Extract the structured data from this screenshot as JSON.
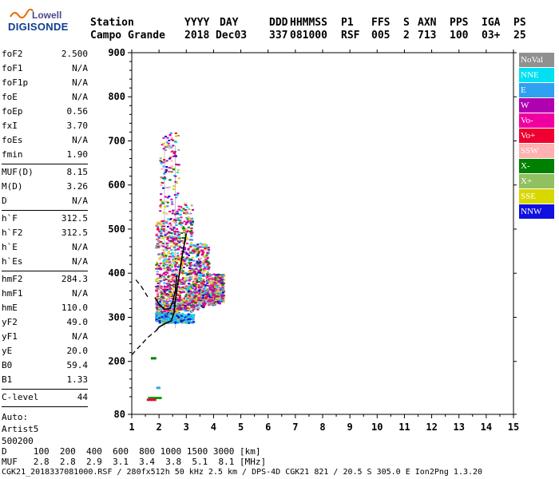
{
  "logo": {
    "line1": "Lowell",
    "line2": "DIGISONDE"
  },
  "header": {
    "labels": [
      "Station",
      "YYYY",
      "DAY",
      "DDD",
      "HHMMSS",
      "P1",
      "FFS",
      "S",
      "AXN",
      "PPS",
      "IGA",
      "PS"
    ],
    "values": [
      "Campo Grande",
      "2018",
      "Dec03",
      "337",
      "081000",
      "RSF",
      "005",
      "2",
      "713",
      "100",
      "03+",
      "25"
    ]
  },
  "params": {
    "g1": [
      {
        "label": "foF2",
        "value": "2.500"
      },
      {
        "label": "foF1",
        "value": "N/A"
      },
      {
        "label": "foF1p",
        "value": "N/A"
      },
      {
        "label": "foE",
        "value": "N/A"
      },
      {
        "label": "foEp",
        "value": "0.56"
      },
      {
        "label": "fxI",
        "value": "3.70"
      },
      {
        "label": "foEs",
        "value": "N/A"
      },
      {
        "label": "fmin",
        "value": "1.90"
      }
    ],
    "g2": [
      {
        "label": "MUF(D)",
        "value": "8.15"
      },
      {
        "label": "M(D)",
        "value": "3.26"
      },
      {
        "label": "D",
        "value": "N/A"
      }
    ],
    "g3": [
      {
        "label": "h`F",
        "value": "312.5"
      },
      {
        "label": "h`F2",
        "value": "312.5"
      },
      {
        "label": "h`E",
        "value": "N/A"
      },
      {
        "label": "h`Es",
        "value": "N/A"
      }
    ],
    "g4": [
      {
        "label": "hmF2",
        "value": "284.3"
      },
      {
        "label": "hmF1",
        "value": "N/A"
      },
      {
        "label": "hmE",
        "value": "110.0"
      },
      {
        "label": "yF2",
        "value": "49.0"
      },
      {
        "label": "yF1",
        "value": "N/A"
      },
      {
        "label": "yE",
        "value": "20.0"
      },
      {
        "label": "B0",
        "value": "59.4"
      },
      {
        "label": "B1",
        "value": "1.33"
      }
    ],
    "g5": [
      {
        "label": "C-level",
        "value": "44"
      }
    ],
    "auto": [
      "Auto:",
      "Artist5",
      "500200"
    ]
  },
  "legend": [
    {
      "label": "NoVal",
      "color": "#909090"
    },
    {
      "label": "NNE",
      "color": "#00e0f0"
    },
    {
      "label": "E",
      "color": "#30a0f0"
    },
    {
      "label": "W",
      "color": "#b000b0"
    },
    {
      "label": "Vo-",
      "color": "#f000a0"
    },
    {
      "label": "Vo+",
      "color": "#f00030"
    },
    {
      "label": "SSW",
      "color": "#ffb0b0"
    },
    {
      "label": "X-",
      "color": "#008000"
    },
    {
      "label": "X+",
      "color": "#90c060"
    },
    {
      "label": "SSE",
      "color": "#d8d800"
    },
    {
      "label": "NNW",
      "color": "#1010e0"
    }
  ],
  "footer": {
    "line1": "D     100  200  400  600  800 1000 1500 3000 [km]",
    "line2": "MUF   2.8  2.8  2.9  3.1  3.4  3.8  5.1  8.1 [MHz]",
    "line3": "CGK21_2018337081000.RSF / 280fx512h 50 kHz 2.5 km / DPS-4D CGK21 821 / 20.5 S 305.0 E Ion2Png 1.3.20"
  },
  "chart_data": {
    "type": "scatter",
    "xlim": [
      1,
      15
    ],
    "ylim": [
      80,
      900
    ],
    "xticks": [
      "1",
      "2",
      "3",
      "4",
      "5",
      "6",
      "7",
      "8",
      "9",
      "10",
      "11",
      "12",
      "13",
      "14",
      "15"
    ],
    "yticks": [
      "80",
      "200",
      "300",
      "400",
      "500",
      "600",
      "700",
      "800",
      "900"
    ],
    "grid": false,
    "legend_position": "right",
    "es_traces": [
      {
        "x": [
          1.6,
          2.1
        ],
        "y": [
          117,
          117
        ],
        "color": "#00a000"
      },
      {
        "x": [
          1.55,
          1.9
        ],
        "y": [
          113,
          113
        ],
        "color": "#f00030"
      },
      {
        "x": [
          1.9,
          2.05
        ],
        "y": [
          140,
          140
        ],
        "color": "#30a0f0"
      },
      {
        "x": [
          1.7,
          1.9
        ],
        "y": [
          207,
          207
        ],
        "color": "#008000"
      }
    ],
    "profile_dashed": {
      "x": [
        1.0,
        1.3,
        1.6,
        1.8,
        1.9
      ],
      "y": [
        215,
        235,
        255,
        265,
        270
      ]
    },
    "profile_upper_dashed": {
      "x": [
        1.15,
        1.35,
        1.5,
        1.6
      ],
      "y": [
        385,
        370,
        355,
        345
      ]
    },
    "profile_solid": {
      "x": [
        1.9,
        2.0,
        2.2,
        2.45,
        2.55,
        2.6,
        2.7,
        2.85,
        3.0
      ],
      "y": [
        270,
        278,
        285,
        292,
        310,
        340,
        380,
        440,
        490
      ]
    },
    "trace_solid_inner": {
      "x": [
        1.85,
        2.0,
        2.2,
        2.4,
        2.5,
        2.6,
        2.65
      ],
      "y": [
        345,
        330,
        318,
        320,
        335,
        360,
        395
      ]
    }
  }
}
